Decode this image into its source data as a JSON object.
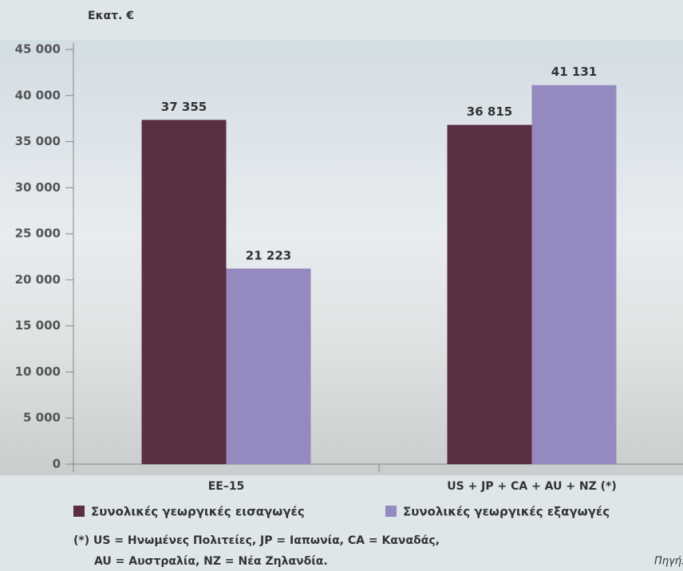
{
  "chart_data": {
    "type": "bar",
    "ylabel": "Εκατ. €",
    "categories": [
      "ΕΕ–15",
      "US + JP + CA + AU + NZ (*)"
    ],
    "series": [
      {
        "name": "Συνολικές γεωργικές εισαγωγές",
        "color": "#5a2e43",
        "values": [
          37355,
          36815
        ],
        "value_labels": [
          "37 355",
          "36 815"
        ]
      },
      {
        "name": "Συνολικές γεωργικές εξαγωγές",
        "color": "#958ac0",
        "values": [
          21223,
          41131
        ],
        "value_labels": [
          "21 223",
          "41 131"
        ]
      }
    ],
    "ylim": [
      0,
      45000
    ],
    "yticks": [
      0,
      {
        "value": 5000,
        "label": "5 000"
      },
      {
        "value": 10000,
        "label": "10 000"
      },
      {
        "value": 15000,
        "label": "15 000"
      },
      {
        "value": 20000,
        "label": "20 000"
      },
      {
        "value": 25000,
        "label": "25 000"
      },
      {
        "value": 30000,
        "label": "30 000"
      },
      {
        "value": 35000,
        "label": "35 000"
      },
      {
        "value": 40000,
        "label": "40 000"
      },
      {
        "value": 45000,
        "label": "45 000"
      }
    ],
    "grid": false,
    "footnote": [
      "(*) US = Ηνωμένες Πολιτείες, JP = Ιαπωνία, CA = Καναδάς,",
      "AU = Αυστραλία, NZ = Νέα Ζηλανδία."
    ],
    "source": "Πηγή:"
  }
}
